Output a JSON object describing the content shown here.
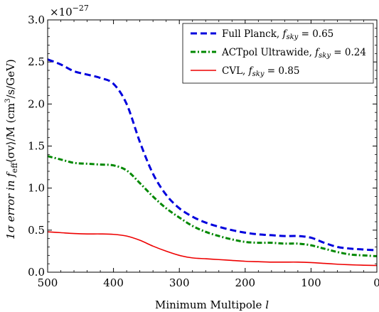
{
  "chart_data": {
    "type": "line",
    "xlabel_prefix": "Minimum Multipole ",
    "xlabel_var": "l",
    "ylabel_a": "1σ error in f",
    "ylabel_sub": "eff",
    "ylabel_b": "⟨σv⟩/M  (cm",
    "ylabel_sup": "3",
    "ylabel_c": "/s/GeV)",
    "exponent_base": "×10",
    "exponent_power": "−27",
    "xlim": [
      500,
      0
    ],
    "ylim": [
      0.0,
      3.0
    ],
    "x_inverted": true,
    "xticks": [
      500,
      400,
      300,
      200,
      100,
      0
    ],
    "xtick_labels": [
      "500",
      "400",
      "300",
      "200",
      "100",
      "0"
    ],
    "yticks": [
      0.0,
      0.5,
      1.0,
      1.5,
      2.0,
      2.5,
      3.0
    ],
    "ytick_labels": [
      "0.0",
      "0.5",
      "1.0",
      "1.5",
      "2.0",
      "2.5",
      "3.0"
    ],
    "grid": false,
    "legend_position": "top-right",
    "x": [
      500,
      480,
      460,
      440,
      420,
      400,
      380,
      360,
      340,
      320,
      300,
      280,
      260,
      240,
      220,
      200,
      180,
      160,
      140,
      120,
      100,
      80,
      60,
      40,
      20,
      0
    ],
    "series": [
      {
        "name": "Full Planck, ",
        "fsky_value": "0.65",
        "color": "#0000dd",
        "dash": "dashed",
        "values": [
          2.53,
          2.47,
          2.39,
          2.35,
          2.31,
          2.24,
          2.0,
          1.55,
          1.17,
          0.92,
          0.76,
          0.66,
          0.59,
          0.54,
          0.5,
          0.47,
          0.45,
          0.44,
          0.43,
          0.43,
          0.41,
          0.35,
          0.3,
          0.28,
          0.27,
          0.26
        ]
      },
      {
        "name": "ACTpol Ultrawide, ",
        "fsky_value": "0.24",
        "color": "#008800",
        "dash": "dashdot",
        "values": [
          1.38,
          1.34,
          1.3,
          1.29,
          1.28,
          1.27,
          1.21,
          1.06,
          0.9,
          0.76,
          0.65,
          0.55,
          0.48,
          0.43,
          0.39,
          0.36,
          0.35,
          0.35,
          0.34,
          0.34,
          0.32,
          0.28,
          0.24,
          0.21,
          0.2,
          0.19
        ]
      },
      {
        "name": "CVL, ",
        "fsky_value": "0.85",
        "color": "#ee0000",
        "dash": "solid",
        "values": [
          0.48,
          0.47,
          0.46,
          0.455,
          0.455,
          0.45,
          0.43,
          0.38,
          0.31,
          0.25,
          0.2,
          0.17,
          0.16,
          0.15,
          0.14,
          0.13,
          0.125,
          0.12,
          0.12,
          0.12,
          0.115,
          0.105,
          0.095,
          0.088,
          0.083,
          0.08
        ]
      }
    ]
  }
}
